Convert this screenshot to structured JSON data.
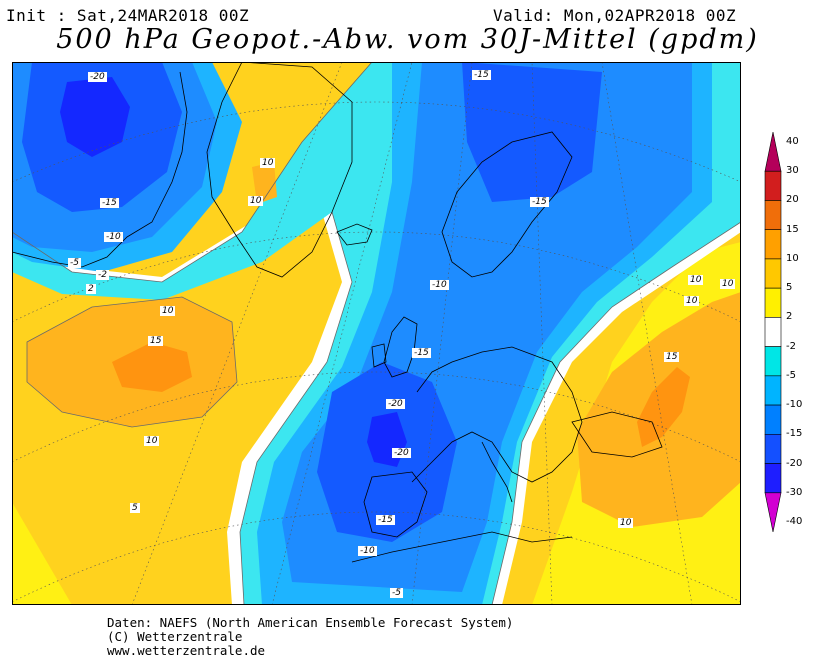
{
  "header": {
    "init": "Init : Sat,24MAR2018 00Z",
    "valid": "Valid: Mon,02APR2018 00Z",
    "title": "500 hPa Geopot.-Abw. vom 30J-Mittel (gpdm)"
  },
  "legend": {
    "labels": [
      "40",
      "30",
      "20",
      "15",
      "10",
      "5",
      "2",
      "-2",
      "-5",
      "-10",
      "-15",
      "-20",
      "-30",
      "-40"
    ],
    "colors": [
      "#b4005a",
      "#d21e1e",
      "#f06e0a",
      "#ffa000",
      "#ffc800",
      "#fff000",
      "#ffffff",
      "#00e6e6",
      "#00b4ff",
      "#0080ff",
      "#1450ff",
      "#1e1eff",
      "#d200d2"
    ]
  },
  "map_colors": {
    "plus_15": "#ff9410",
    "plus_10": "#ffb41e",
    "plus_5": "#ffd21e",
    "plus_2": "#fff014",
    "neutral": "#ffffff",
    "minus_2": "#3ce6f0",
    "minus_5": "#1eb4ff",
    "minus_10": "#1e8cff",
    "minus_15": "#145aff",
    "minus_20": "#1428ff"
  },
  "contour_labels": [
    {
      "id": "a",
      "text": "-20"
    },
    {
      "id": "b",
      "text": "-15"
    },
    {
      "id": "c",
      "text": "-10"
    },
    {
      "id": "d",
      "text": "-5"
    },
    {
      "id": "e",
      "text": "-2"
    },
    {
      "id": "f",
      "text": "10"
    },
    {
      "id": "g",
      "text": "15"
    },
    {
      "id": "h",
      "text": "10"
    },
    {
      "id": "i",
      "text": "5"
    },
    {
      "id": "j",
      "text": "10"
    },
    {
      "id": "k",
      "text": "10"
    },
    {
      "id": "l",
      "text": "-15"
    },
    {
      "id": "m",
      "text": "-15"
    },
    {
      "id": "n",
      "text": "-10"
    },
    {
      "id": "o",
      "text": "-15"
    },
    {
      "id": "p",
      "text": "-20"
    },
    {
      "id": "q",
      "text": "-20"
    },
    {
      "id": "r",
      "text": "-15"
    },
    {
      "id": "s",
      "text": "-10"
    },
    {
      "id": "t",
      "text": "-5"
    },
    {
      "id": "u",
      "text": "15"
    },
    {
      "id": "v",
      "text": "10"
    },
    {
      "id": "w",
      "text": "10"
    },
    {
      "id": "x",
      "text": "10"
    },
    {
      "id": "y",
      "text": "10"
    },
    {
      "id": "z",
      "text": "2"
    }
  ],
  "footer": {
    "line1": "Daten: NAEFS (North American Ensemble Forecast System)",
    "line2": "(C) Wetterzentrale",
    "line3": "www.wetterzentrale.de"
  }
}
